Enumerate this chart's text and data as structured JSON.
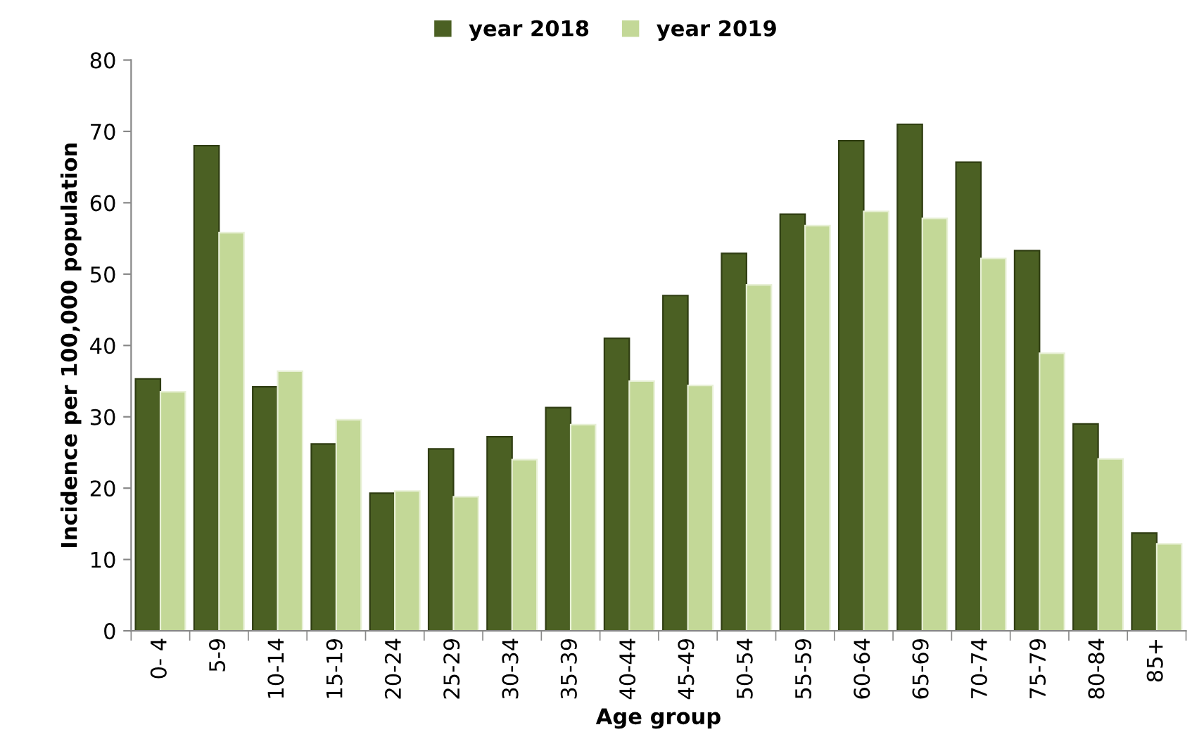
{
  "chart_data": {
    "type": "bar",
    "xlabel": "Age group",
    "ylabel": "Incidence per 100,000 population",
    "categories": [
      "0- 4",
      "5-9",
      "10-14",
      "15-19",
      "20-24",
      "25-29",
      "30-34",
      "35-39",
      "40-44",
      "45-49",
      "50-54",
      "55-59",
      "60-64",
      "65-69",
      "70-74",
      "75-79",
      "80-84",
      "85+"
    ],
    "series": [
      {
        "name": "year 2018",
        "color": "#4b6023",
        "values": [
          35.3,
          68,
          34.2,
          26.2,
          19.3,
          25.5,
          27.2,
          31.3,
          41,
          47,
          52.9,
          58.4,
          68.7,
          71,
          65.7,
          53.3,
          29,
          13.7
        ]
      },
      {
        "name": "year 2019",
        "color": "#c3d897",
        "values": [
          33.5,
          55.8,
          36.4,
          29.6,
          19.6,
          18.8,
          24,
          28.9,
          35,
          34.4,
          48.5,
          56.8,
          58.8,
          57.8,
          52.2,
          38.9,
          24.1,
          12.2
        ]
      }
    ],
    "ylim": [
      0,
      80
    ],
    "yticks": [
      0,
      10,
      20,
      30,
      40,
      50,
      60,
      70,
      80
    ],
    "grid": false,
    "legend": "top"
  }
}
